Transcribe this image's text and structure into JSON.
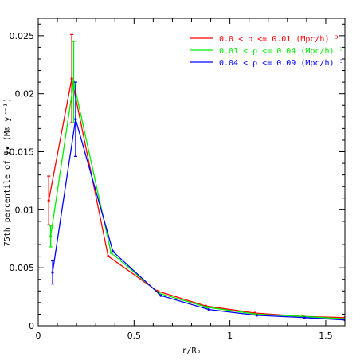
{
  "chart_data": {
    "type": "line",
    "xlabel": "r/Rₚ",
    "ylabel": "75th percentile of Ψ★ (M⊙ yr⁻¹)",
    "xlim": [
      0,
      1.6
    ],
    "ylim": [
      0,
      0.0265
    ],
    "x_ticks": [
      0,
      0.5,
      1,
      1.5
    ],
    "x_tick_labels": [
      "0",
      "0.5",
      "1",
      "1.5"
    ],
    "y_ticks": [
      0,
      0.005,
      0.01,
      0.015,
      0.02,
      0.025
    ],
    "y_tick_labels": [
      "0",
      "0.005",
      "0.01",
      "0.015",
      "0.02",
      "0.025"
    ],
    "grid": false,
    "legend_position": "top-right",
    "series": [
      {
        "name": "0.0 < ρ <= 0.01  (Mpc/h)⁻³",
        "color": "#ff0000",
        "x": [
          0.055,
          0.175,
          0.365,
          0.62,
          0.875,
          1.13,
          1.38,
          1.6
        ],
        "y": [
          0.0108,
          0.0213,
          0.006,
          0.003,
          0.0017,
          0.0011,
          0.0008,
          0.0007
        ],
        "err": [
          0.0021,
          0.0038,
          0.0,
          0.0,
          0.0,
          0.0,
          0.0,
          0.0
        ]
      },
      {
        "name": "0.01 < ρ <= 0.04  (Mpc/h)⁻³",
        "color": "#00ee00",
        "x": [
          0.065,
          0.185,
          0.38,
          0.63,
          0.88,
          1.135,
          1.385,
          1.6
        ],
        "y": [
          0.0077,
          0.021,
          0.0063,
          0.0028,
          0.0016,
          0.001,
          0.0008,
          0.0006
        ],
        "err": [
          0.0009,
          0.0035,
          0.0,
          0.0,
          0.0,
          0.0,
          0.0,
          0.0
        ]
      },
      {
        "name": "0.04 < ρ <= 0.09  (Mpc/h)⁻³",
        "color": "#0000ff",
        "x": [
          0.075,
          0.195,
          0.39,
          0.64,
          0.89,
          1.14,
          1.39,
          1.6
        ],
        "y": [
          0.0046,
          0.0178,
          0.0064,
          0.0026,
          0.0014,
          0.0009,
          0.0007,
          0.0005
        ],
        "err": [
          0.001,
          0.0032,
          0.0,
          0.0,
          0.0,
          0.0,
          0.0,
          0.0
        ]
      }
    ]
  }
}
